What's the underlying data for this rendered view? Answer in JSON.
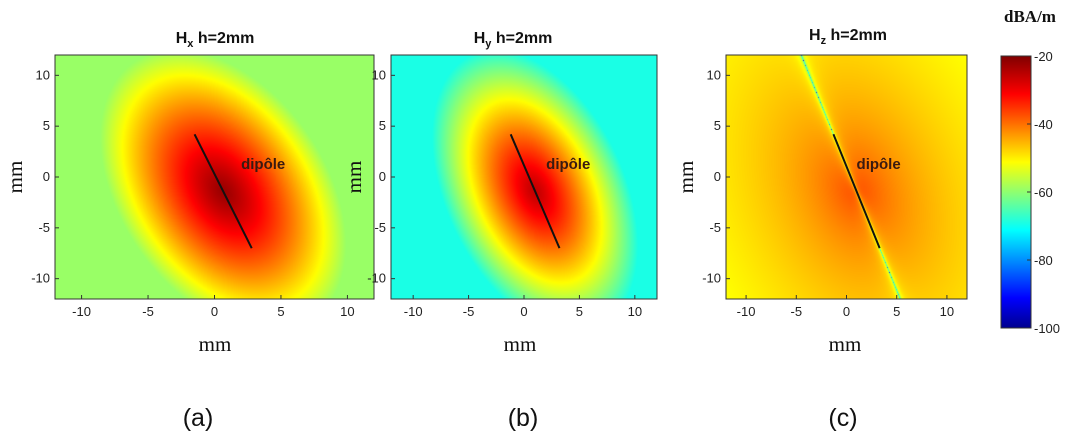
{
  "chart_data": [
    {
      "type": "heatmap",
      "panel": "(a)",
      "title_main": "H",
      "title_sub": "x",
      "title_rest": " h=2mm",
      "xlabel": "mm",
      "ylabel": "mm",
      "xlim": [
        -12,
        12
      ],
      "ylim": [
        -12,
        12
      ],
      "xticks": [
        -10,
        -5,
        0,
        5,
        10
      ],
      "yticks": [
        10,
        5,
        0,
        -5,
        -10
      ],
      "dipole": {
        "start": [
          -1.5,
          4.2
        ],
        "end": [
          2.8,
          -7.0
        ]
      },
      "annotation": {
        "text": "dipôle",
        "x": 2.0,
        "y": 0.8
      },
      "field": "Hx",
      "min_dB": -58,
      "max_dB": -22
    },
    {
      "type": "heatmap",
      "panel": "(b)",
      "title_main": "H",
      "title_sub": "y",
      "title_rest": " h=2mm",
      "xlabel": "mm",
      "ylabel": "mm",
      "xlim": [
        -12,
        12
      ],
      "ylim": [
        -12,
        12
      ],
      "xticks": [
        -10,
        -5,
        0,
        5,
        10
      ],
      "yticks": [
        10,
        5,
        0,
        -5,
        -10
      ],
      "dipole": {
        "start": [
          -1.2,
          4.2
        ],
        "end": [
          3.2,
          -7.0
        ]
      },
      "annotation": {
        "text": "dipôle",
        "x": 2.0,
        "y": 0.8
      },
      "field": "Hy",
      "min_dB": -68,
      "max_dB": -25
    },
    {
      "type": "heatmap",
      "panel": "(c)",
      "title_main": "H",
      "title_sub": "z",
      "title_rest": " h=2mm",
      "xlabel": "mm",
      "ylabel": "mm",
      "xlim": [
        -12,
        12
      ],
      "ylim": [
        -12,
        12
      ],
      "xticks": [
        -10,
        -5,
        0,
        5,
        10
      ],
      "yticks": [
        10,
        5,
        0,
        -5,
        -10
      ],
      "dipole": {
        "start": [
          -1.3,
          4.2
        ],
        "end": [
          3.3,
          -7.0
        ]
      },
      "annotation": {
        "text": "dipôle",
        "x": 1.0,
        "y": 0.8
      },
      "field": "Hz",
      "min_dB": -88,
      "max_dB": -33
    }
  ],
  "colorbar": {
    "title": "dBA/m",
    "range": [
      -100,
      -20
    ],
    "ticks": [
      -20,
      -40,
      -60,
      -80,
      -100
    ],
    "colormap": "jet"
  },
  "captions": [
    "(a)",
    "(b)",
    "(c)"
  ]
}
